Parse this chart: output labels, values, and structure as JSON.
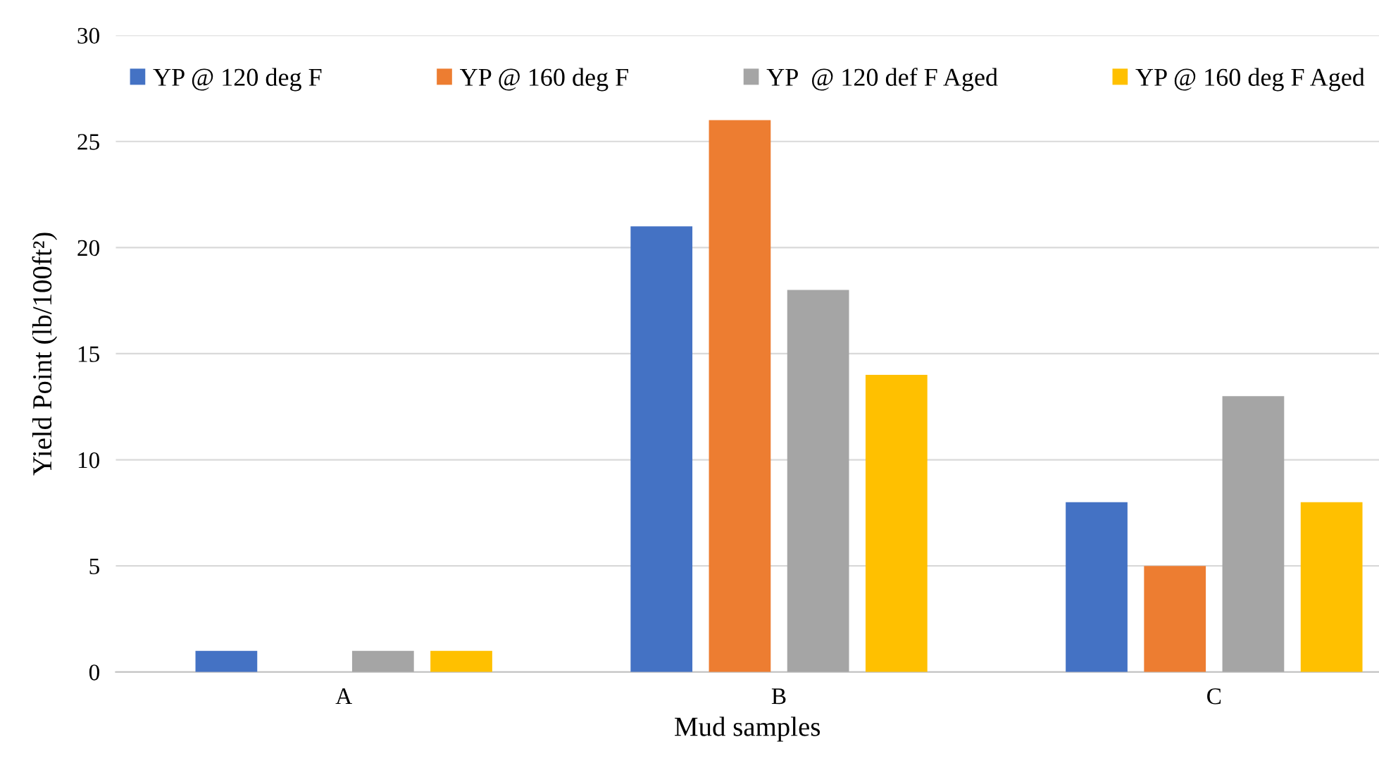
{
  "chart_data": {
    "type": "bar",
    "xlabel": "Mud samples",
    "ylabel": "Yield Point (lb/100ft²)",
    "categories": [
      "A",
      "B",
      "C"
    ],
    "series": [
      {
        "name": "YP @ 120 deg F",
        "color": "#4472c4",
        "values": [
          1,
          21,
          8
        ]
      },
      {
        "name": "YP @ 160 deg F",
        "color": "#ed7d31",
        "values": [
          0,
          26,
          5
        ]
      },
      {
        "name": "YP  @ 120 def F Aged",
        "color": "#a5a5a5",
        "values": [
          1,
          18,
          13
        ]
      },
      {
        "name": "YP @ 160 deg F Aged",
        "color": "#ffc000",
        "values": [
          1,
          14,
          8
        ]
      }
    ],
    "ylim": [
      0,
      30
    ],
    "yticks": [
      0,
      5,
      10,
      15,
      20,
      25,
      30
    ],
    "grid": "y",
    "legend": "top"
  }
}
